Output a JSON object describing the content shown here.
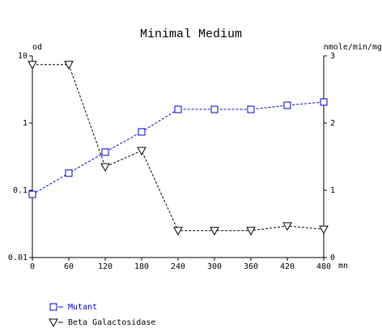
{
  "chart_data": {
    "type": "line",
    "title": "Minimal Medium",
    "y_label": "od",
    "y2_label": "nmole/min/mg",
    "x_label": "mn",
    "x": [
      0,
      60,
      120,
      180,
      240,
      300,
      360,
      420,
      480
    ],
    "xlim": [
      0,
      480
    ],
    "xticks": [
      0,
      60,
      120,
      180,
      240,
      300,
      360,
      420,
      480
    ],
    "ylim": [
      0.01,
      10
    ],
    "yticks": [
      0.01,
      0.1,
      1,
      10
    ],
    "ylog": true,
    "y2lim": [
      0,
      3
    ],
    "y2ticks": [
      0,
      1,
      2,
      3
    ],
    "series": [
      {
        "name": "Mutant",
        "color": "#0000cc",
        "marker": "square",
        "values": [
          0.087,
          0.18,
          0.37,
          0.74,
          1.6,
          1.6,
          1.6,
          1.84,
          2.06
        ]
      },
      {
        "name": "Beta Galactosidase",
        "color": "#000000",
        "marker": "triangle",
        "axis": "y2",
        "values": [
          2.87,
          2.87,
          1.35,
          1.59,
          0.4,
          0.4,
          0.4,
          0.47,
          0.42
        ]
      }
    ]
  }
}
